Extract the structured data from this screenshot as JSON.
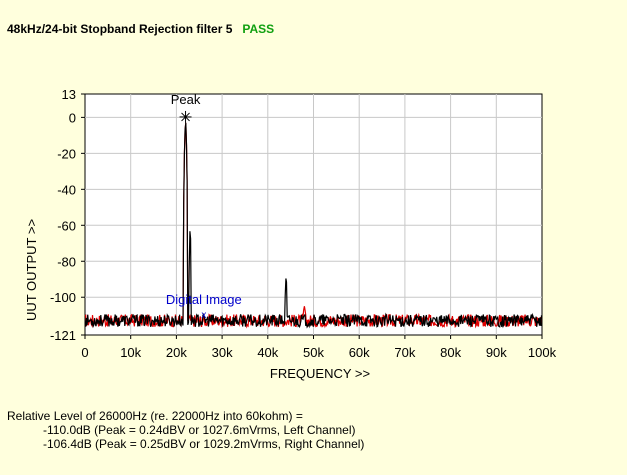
{
  "header": {
    "title": "48kHz/24-bit Stopband Rejection filter 5",
    "status": "PASS"
  },
  "colors": {
    "background": "#FFFFDD",
    "plot_bg": "#FFFFFF",
    "grid": "#C8C8C8",
    "left_channel": "#000000",
    "right_channel": "#E00000",
    "pass": "#10A010",
    "annotation": "#0000CC"
  },
  "chart_data": {
    "type": "line",
    "xlabel": "FREQUENCY >>",
    "ylabel": "UUT OUTPUT >>",
    "xlim": [
      0,
      100000
    ],
    "ylim": [
      -121,
      13
    ],
    "x_ticks": [
      0,
      10000,
      20000,
      30000,
      40000,
      50000,
      60000,
      70000,
      80000,
      90000,
      100000
    ],
    "x_tick_labels": [
      "0",
      "10k",
      "20k",
      "30k",
      "40k",
      "50k",
      "60k",
      "70k",
      "80k",
      "90k",
      "100k"
    ],
    "y_ticks": [
      13,
      0,
      -20,
      -40,
      -60,
      -80,
      -100,
      -121
    ],
    "y_tick_labels": [
      "13",
      "0",
      "-20",
      "-40",
      "-60",
      "-80",
      "-100",
      "-121"
    ],
    "grid": true,
    "noise_floor_db": -113,
    "series": [
      {
        "channel": "left",
        "features": [
          {
            "x": 22000,
            "y": 0.24
          },
          {
            "x": 23000,
            "y": -60
          },
          {
            "x": 44000,
            "y": -88
          }
        ]
      },
      {
        "channel": "right",
        "features": [
          {
            "x": 22000,
            "y": 0.25
          },
          {
            "x": 48000,
            "y": -105
          }
        ]
      }
    ],
    "annotations": [
      {
        "label": "Peak",
        "x": 22000,
        "y": 0.24
      },
      {
        "label": "Digital Image",
        "x": 26000,
        "y": -110
      }
    ]
  },
  "result": {
    "line1": "Relative Level of 26000Hz (re. 22000Hz into 60kohm) =",
    "line2": "-110.0dB (Peak = 0.24dBV or 1027.6mVrms, Left Channel)",
    "line3": "-106.4dB (Peak = 0.25dBV or 1029.2mVrms, Right Channel)"
  }
}
